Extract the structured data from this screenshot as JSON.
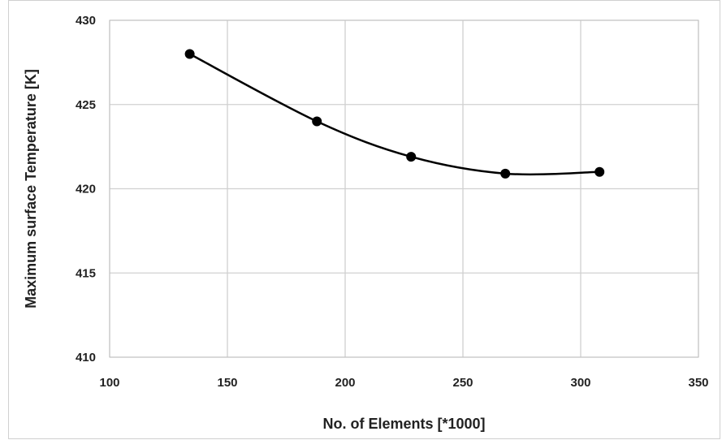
{
  "chart_data": {
    "type": "line",
    "smooth": true,
    "marker": "circle",
    "xlabel": "No. of Elements [*1000]",
    "ylabel": "Maximum surface Temperature [K]",
    "xlim": [
      100,
      350
    ],
    "ylim": [
      410,
      430
    ],
    "xticks": [
      100,
      150,
      200,
      250,
      300,
      350
    ],
    "yticks": [
      410,
      415,
      420,
      425,
      430
    ],
    "grid": true,
    "series": [
      {
        "x": [
          134,
          188,
          228,
          268,
          308
        ],
        "y": [
          428,
          424,
          421.9,
          420.9,
          421
        ],
        "color": "#000000"
      }
    ]
  }
}
